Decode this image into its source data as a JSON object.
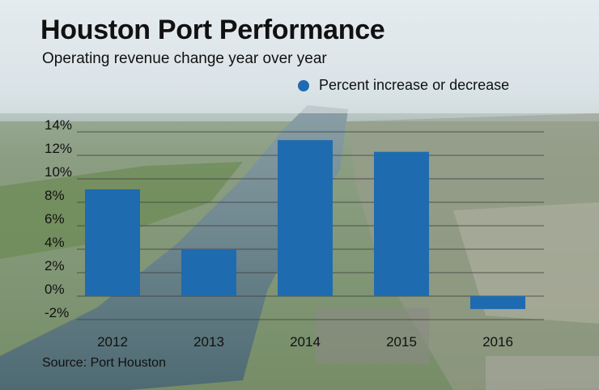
{
  "title": "Houston Port Performance",
  "subtitle": "Operating revenue change year over year",
  "source": "Source: Port Houston",
  "colors": {
    "bar": "#1f6bb0",
    "text": "#111111",
    "grid": "#3a3a3a"
  },
  "chart_data": {
    "type": "bar",
    "title": "Houston Port Performance",
    "subtitle": "Operating revenue change year over year",
    "categories": [
      "2012",
      "2013",
      "2014",
      "2015",
      "2016"
    ],
    "series": [
      {
        "name": "Percent increase or decrease",
        "values": [
          9.1,
          4.0,
          13.3,
          12.3,
          -1.1
        ]
      }
    ],
    "ylim": [
      -2,
      14
    ],
    "yticks": [
      -2,
      0,
      2,
      4,
      6,
      8,
      10,
      12,
      14
    ],
    "ytick_labels": [
      "-2%",
      "0%",
      "2%",
      "4%",
      "6%",
      "8%",
      "10%",
      "12%",
      "14%"
    ],
    "grid": true,
    "legend_position": "top-right"
  }
}
